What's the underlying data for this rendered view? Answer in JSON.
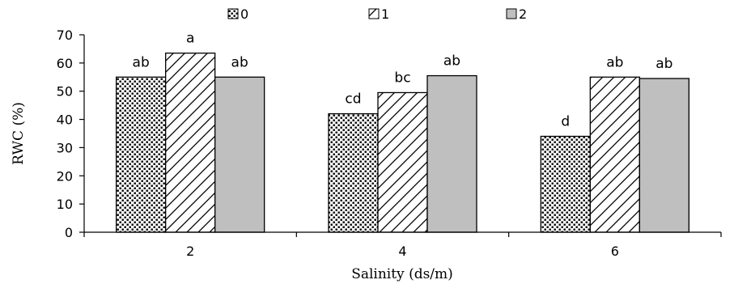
{
  "chart_data": {
    "type": "bar",
    "xlabel": "Salinity (ds/m)",
    "ylabel": "RWC (%)",
    "ylim": [
      0,
      70
    ],
    "yticks": [
      0,
      10,
      20,
      30,
      40,
      50,
      60,
      70
    ],
    "grid": false,
    "legend_position": "top",
    "categories": [
      "2",
      "4",
      "6"
    ],
    "series": [
      {
        "name": "0",
        "pattern": "dots",
        "color": "#000000",
        "values": [
          55,
          42,
          34
        ],
        "labels": [
          "ab",
          "cd",
          "d"
        ]
      },
      {
        "name": "1",
        "pattern": "diagonal-hatch",
        "color": "#000000",
        "values": [
          63.5,
          49.5,
          55
        ],
        "labels": [
          "a",
          "bc",
          "ab"
        ]
      },
      {
        "name": "2",
        "pattern": "solid",
        "color": "#bfbfbf",
        "values": [
          55,
          55.5,
          54.5
        ],
        "labels": [
          "ab",
          "ab",
          "ab"
        ]
      }
    ]
  }
}
